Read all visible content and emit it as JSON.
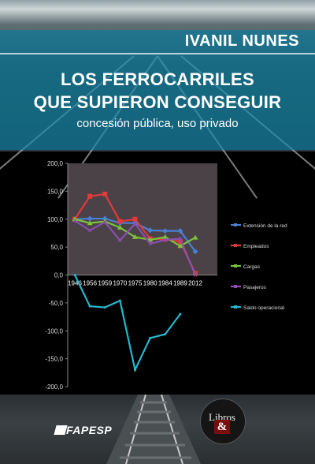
{
  "cover": {
    "author": "IVANIL NUNES",
    "title_line1": "LOS FERROCARRILES",
    "title_line2": "QUE SUPIERON CONSEGUIR",
    "subtitle": "concesión pública, uso privado",
    "publisher_logo": "FAPESP",
    "imprint_logo": "Libros",
    "imprint_amp": "&"
  },
  "chart_data": {
    "type": "line",
    "title": "",
    "xlabel": "",
    "ylabel": "",
    "ylim": [
      -200,
      200
    ],
    "yticks": [
      "200,0",
      "150,0",
      "100,0",
      "50,0",
      "0,0",
      "-50,0",
      "-100,0",
      "-150,0",
      "-200,0"
    ],
    "categories": [
      "1946",
      "1956",
      "1959",
      "1970",
      "1975",
      "1980",
      "1984",
      "1989",
      "2012"
    ],
    "legend_position": "right",
    "grid": false,
    "series": [
      {
        "name": "Extensión de la red",
        "color": "#4a7fd4",
        "values": [
          100,
          101,
          101,
          93,
          93,
          80,
          79,
          79,
          42
        ]
      },
      {
        "name": "Empleados",
        "color": "#e03a3a",
        "values": [
          100,
          141,
          145,
          96,
          100,
          65,
          64,
          60,
          3
        ]
      },
      {
        "name": "Cargas",
        "color": "#7cc23a",
        "values": [
          100,
          93,
          96,
          85,
          68,
          63,
          68,
          52,
          67
        ]
      },
      {
        "name": "Pasajeros",
        "color": "#8a4fb0",
        "values": [
          97,
          80,
          95,
          62,
          92,
          56,
          63,
          65,
          0
        ]
      },
      {
        "name": "Saldo operacional",
        "color": "#25b8d0",
        "values": [
          0,
          -56,
          -58,
          -46,
          -170,
          -113,
          -106,
          -70,
          null
        ]
      }
    ]
  }
}
